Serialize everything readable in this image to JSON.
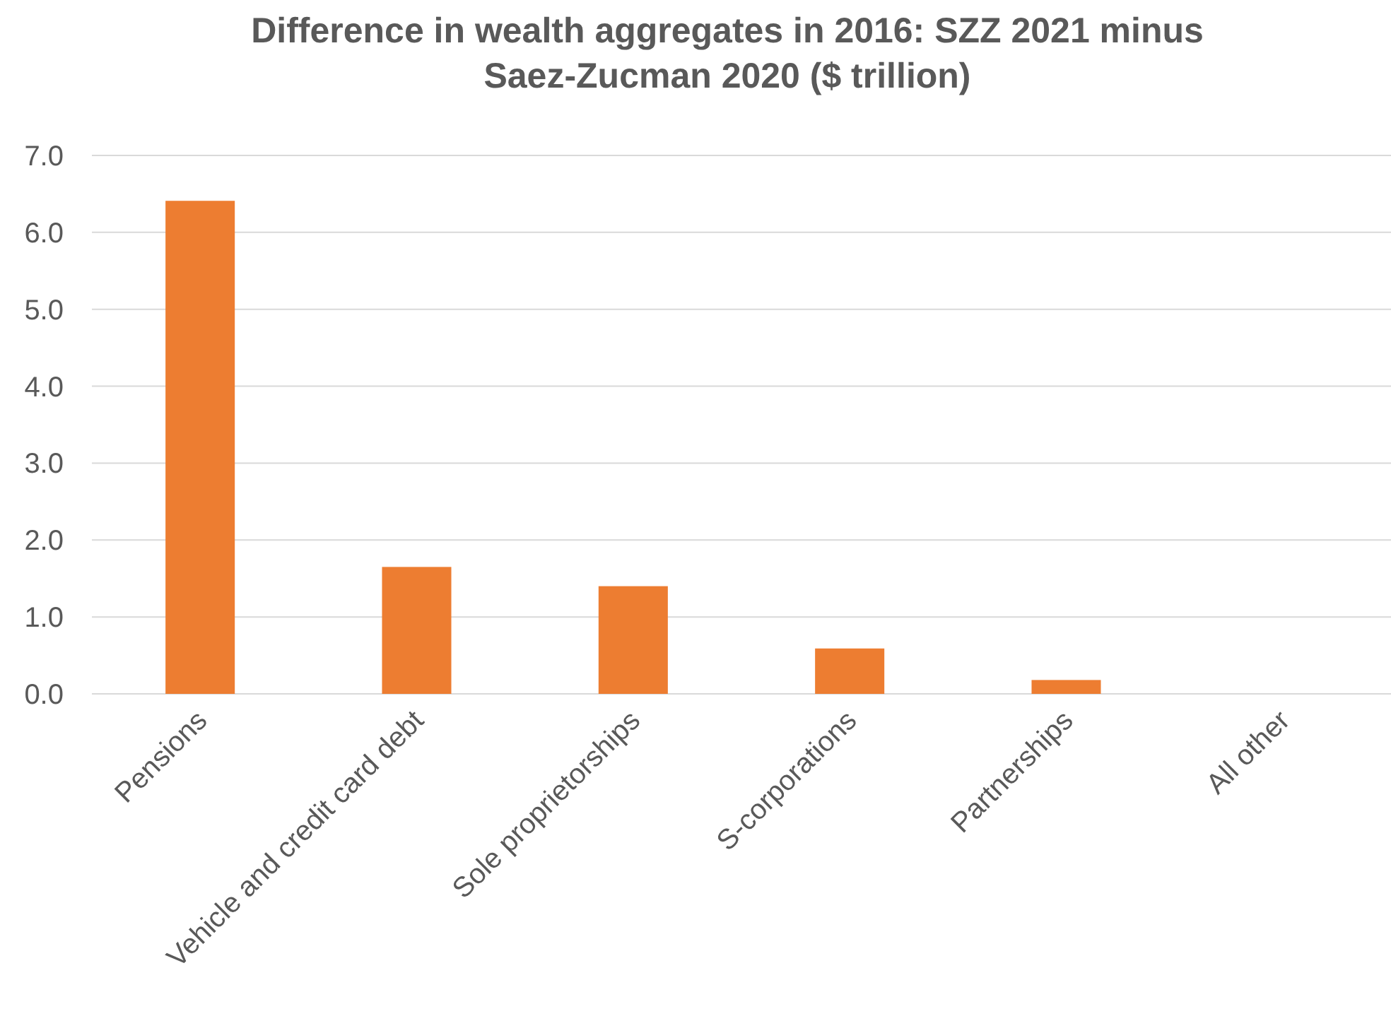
{
  "chart_data": {
    "type": "bar",
    "title": "Difference in wealth aggregates in 2016: SZZ 2021 minus Saez-Zucman 2020 ($ trillion)",
    "categories": [
      "Pensions",
      "Vehicle and credit card debt",
      "Sole proprietorships",
      "S-corporations",
      "Partnerships",
      "All other"
    ],
    "values": [
      6.41,
      1.65,
      1.4,
      0.59,
      0.18,
      0
    ],
    "color": "#ed7d31",
    "ylim": [
      0,
      7
    ],
    "yticks": [
      {
        "value": 0,
        "label": "0.0"
      },
      {
        "value": 1,
        "label": "1.0"
      },
      {
        "value": 2,
        "label": "2.0"
      },
      {
        "value": 3,
        "label": "3.0"
      },
      {
        "value": 4,
        "label": "4.0"
      },
      {
        "value": 5,
        "label": "5.0"
      },
      {
        "value": 6,
        "label": "6.0"
      },
      {
        "value": 7,
        "label": "7.0"
      }
    ],
    "grid": "y"
  }
}
